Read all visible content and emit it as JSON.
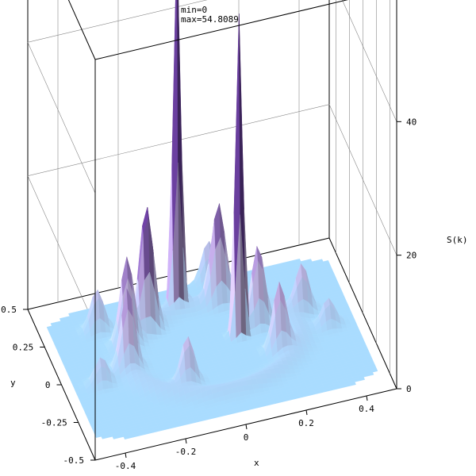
{
  "chart_data": {
    "type": "surface3d",
    "header_lines": [
      "min=0",
      "max=54.8089"
    ],
    "xlabel": "x",
    "ylabel": "y",
    "zlabel": "S(k)",
    "x_ticks": [
      "-0.4",
      "-0.2",
      "0",
      "0.2",
      "0.4"
    ],
    "y_ticks": [
      "-0.5",
      "-0.25",
      "0",
      "0.25",
      "0.5"
    ],
    "z_ticks": [
      "0",
      "20",
      "40"
    ],
    "xlim": [
      -0.5,
      0.5
    ],
    "ylim": [
      -0.5,
      0.5
    ],
    "zlim": [
      0,
      60
    ],
    "zmin": 0,
    "zmax": 54.8089,
    "colors": {
      "surface_low": "#a9dcff",
      "surface_mid": "#c9b6e8",
      "surface_high": "#6a3f9e",
      "box": "#000000",
      "grid": "#888888"
    },
    "peaks": [
      {
        "x": -0.05,
        "y": 0.3,
        "z": 54.8
      },
      {
        "x": 0.1,
        "y": 0.05,
        "z": 48.0
      },
      {
        "x": -0.17,
        "y": 0.21,
        "z": 18.0
      },
      {
        "x": 0.08,
        "y": 0.27,
        "z": 14.0
      },
      {
        "x": -0.25,
        "y": 0.15,
        "z": 12.0
      },
      {
        "x": 0.17,
        "y": 0.08,
        "z": 12.0
      },
      {
        "x": -0.28,
        "y": 0.0,
        "z": 11.0
      },
      {
        "x": 0.2,
        "y": -0.1,
        "z": 10.0
      },
      {
        "x": -0.12,
        "y": -0.17,
        "z": 7.0
      },
      {
        "x": 0.32,
        "y": 0.1,
        "z": 7.0
      },
      {
        "x": -0.32,
        "y": 0.28,
        "z": 6.0
      },
      {
        "x": 0.08,
        "y": 0.42,
        "z": 6.0
      },
      {
        "x": -0.38,
        "y": -0.05,
        "z": 4.0
      },
      {
        "x": 0.38,
        "y": -0.02,
        "z": 4.0
      }
    ]
  }
}
